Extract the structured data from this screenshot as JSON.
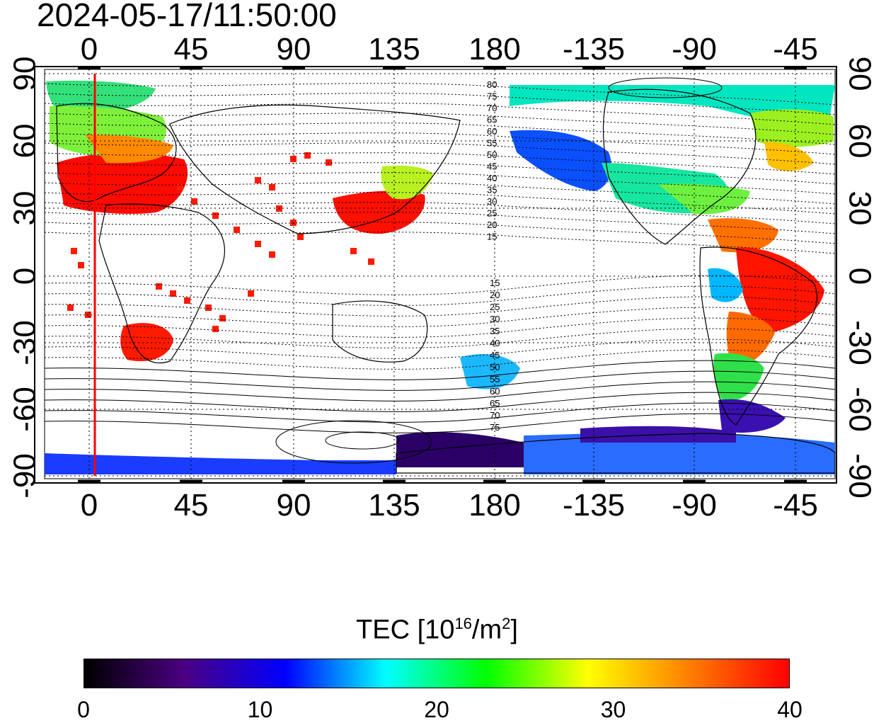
{
  "title": "2024-05-17/11:50:00",
  "map": {
    "top_lon_labels": [
      "0",
      "45",
      "90",
      "135",
      "180",
      "-135",
      "-90",
      "-45"
    ],
    "bottom_lon_labels": [
      "0",
      "45",
      "90",
      "135",
      "180",
      "-135",
      "-90",
      "-45"
    ],
    "left_lat_labels": [
      "90",
      "60",
      "30",
      "0",
      "-30",
      "-60",
      "-90"
    ],
    "right_lat_labels": [
      "90",
      "60",
      "30",
      "0",
      "-30",
      "-60",
      "-90"
    ],
    "contour_labels_upper": [
      "80",
      "75",
      "70",
      "65",
      "60",
      "55",
      "50",
      "45",
      "40",
      "35",
      "30",
      "25",
      "20",
      "15"
    ],
    "contour_labels_lower": [
      "15",
      "20",
      "25",
      "30",
      "35",
      "40",
      "45",
      "50",
      "55",
      "60",
      "65",
      "70",
      "75"
    ],
    "meridian_marker_color": "#ff0000"
  },
  "colorbar": {
    "label_main": "TEC  [10",
    "label_exp1": "16",
    "label_mid": "/m",
    "label_exp2": "2",
    "label_end": "]",
    "ticks": [
      "0",
      "10",
      "20",
      "30",
      "40"
    ],
    "min": 0,
    "max": 40,
    "stops": [
      "#000000",
      "#4b0082",
      "#0000ff",
      "#00ffff",
      "#00ff00",
      "#ffff00",
      "#ff7f00",
      "#ff0000"
    ]
  }
}
